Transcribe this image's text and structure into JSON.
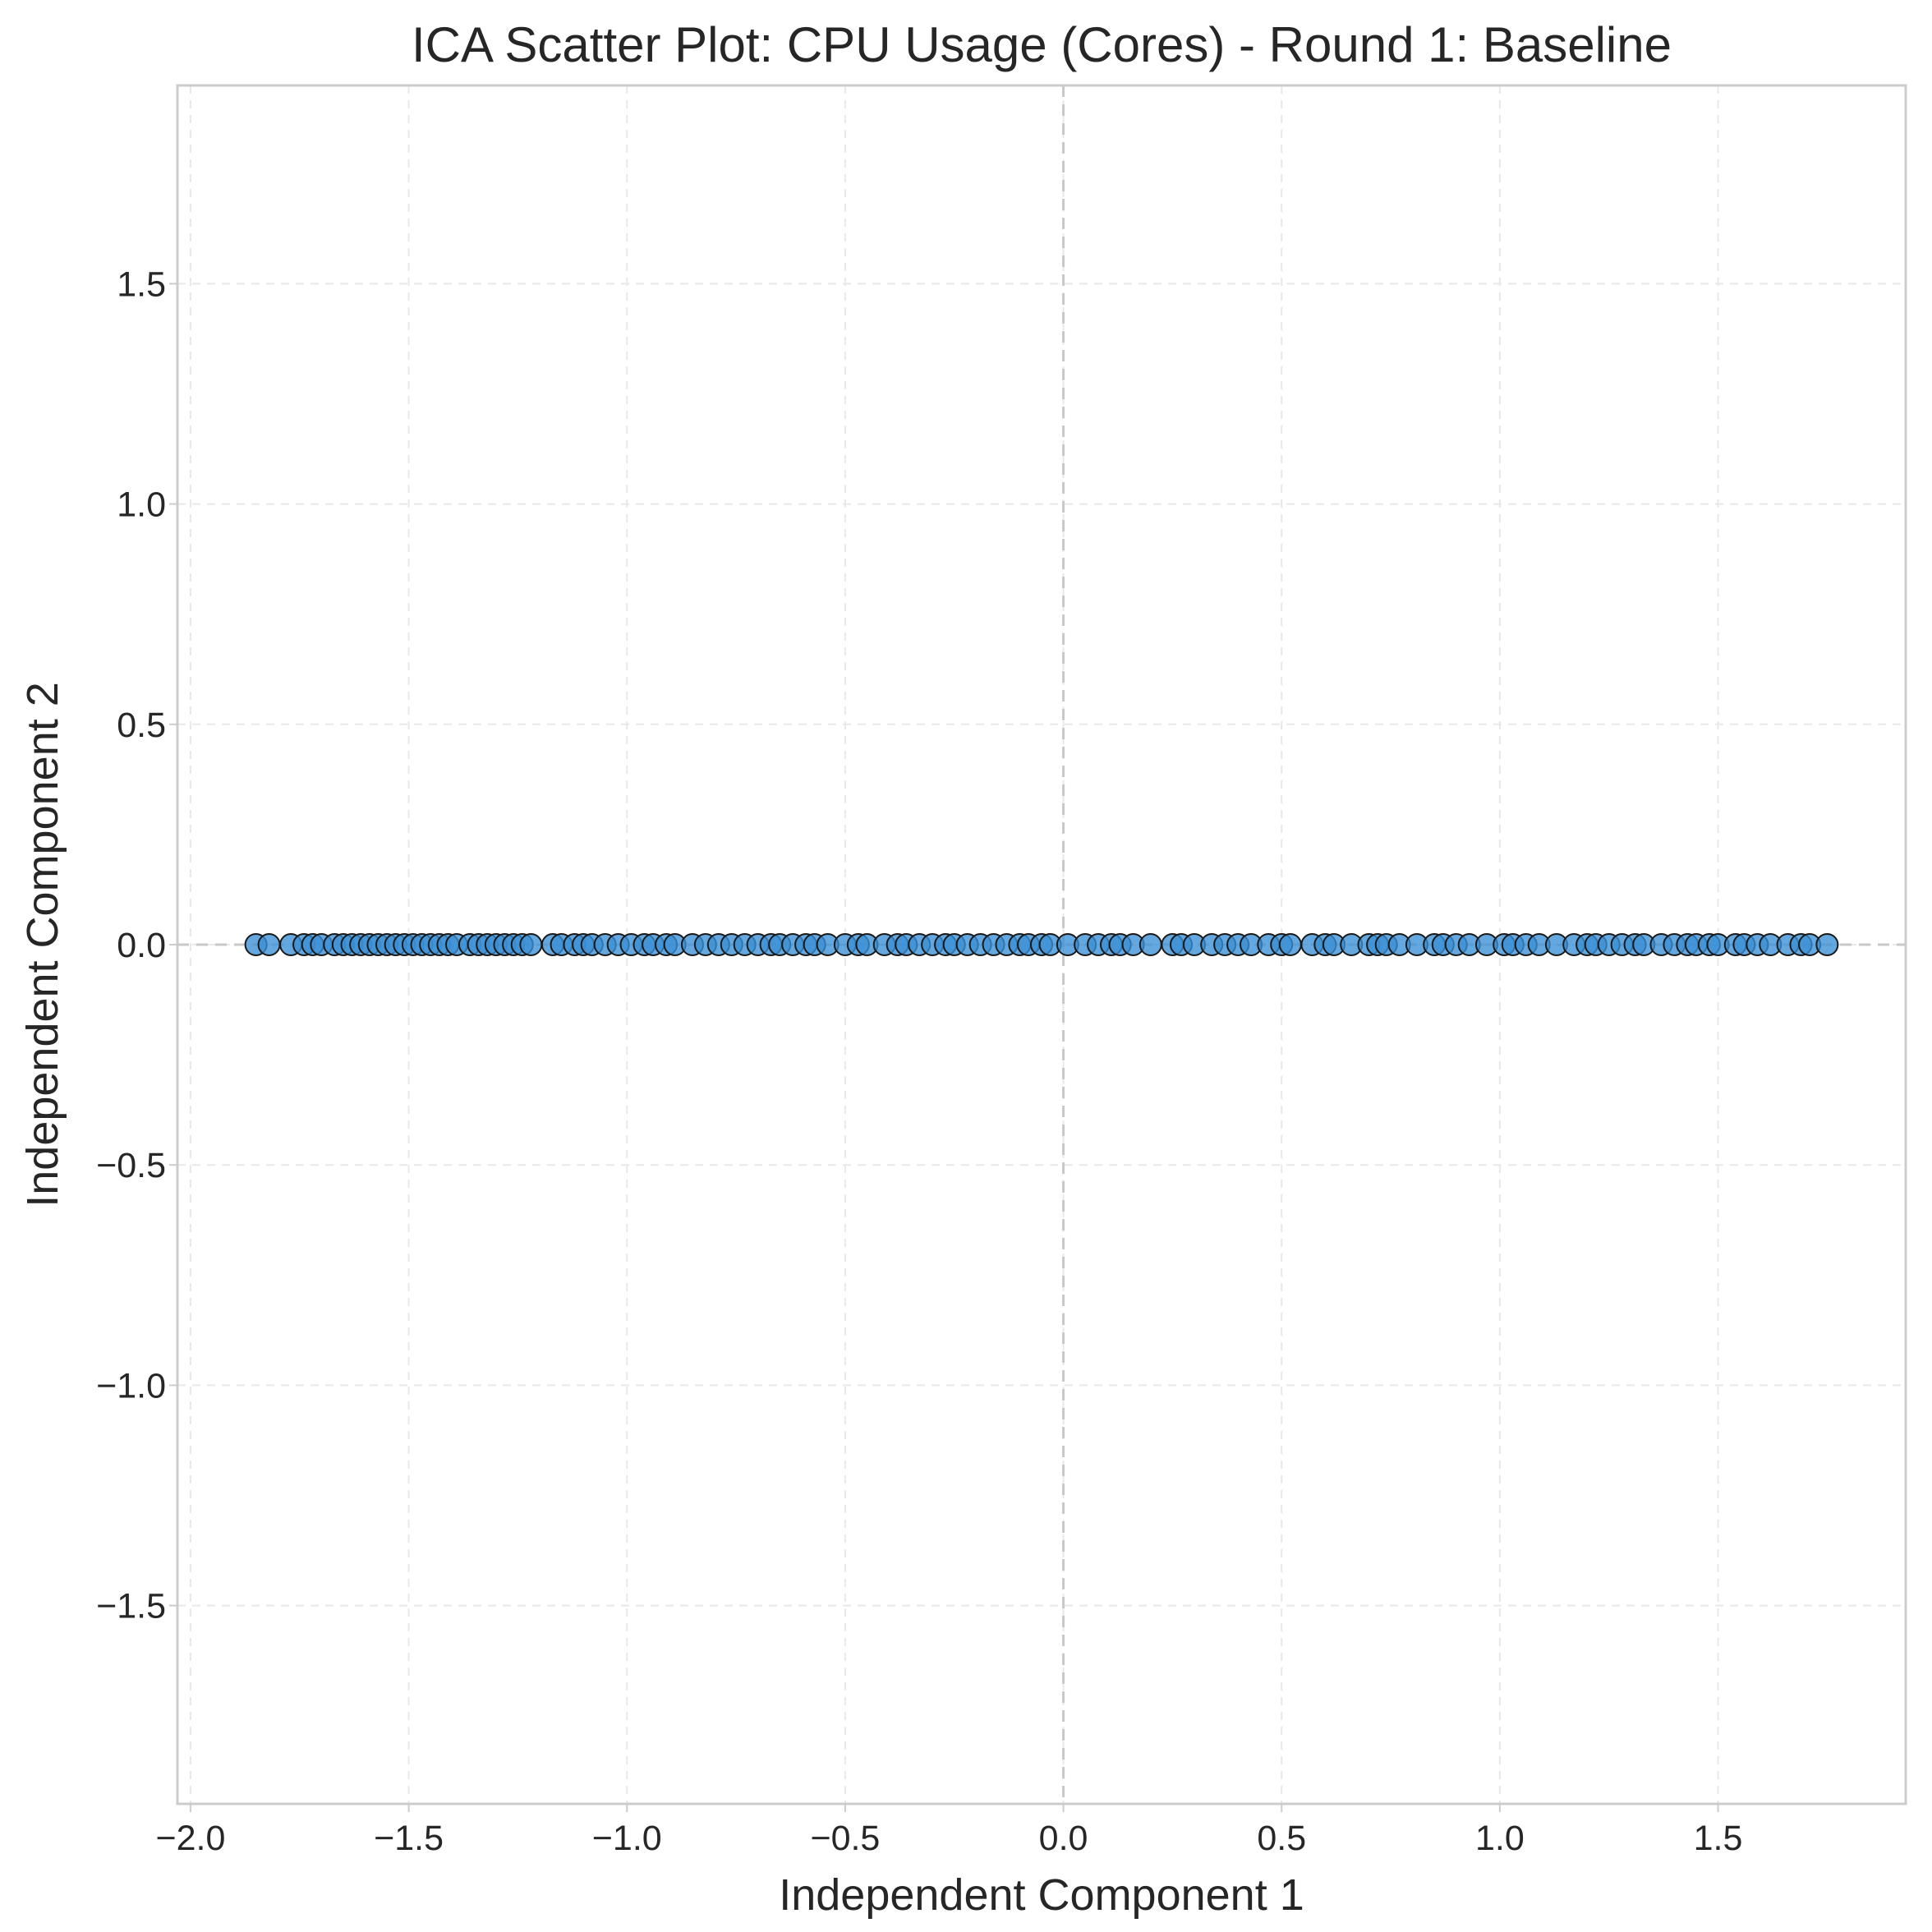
{
  "chart_data": {
    "type": "scatter",
    "title": "ICA Scatter Plot: CPU Usage (Cores) - Round 1: Baseline",
    "xlabel": "Independent Component 1",
    "ylabel": "Independent Component 2",
    "xlim": [
      -2.03,
      1.93
    ],
    "ylim": [
      -1.95,
      1.95
    ],
    "xticks": [
      -2.0,
      -1.5,
      -1.0,
      -0.5,
      0.0,
      0.5,
      1.0,
      1.5
    ],
    "xtick_labels": [
      "−2.0",
      "−1.5",
      "−1.0",
      "−0.5",
      "0.0",
      "0.5",
      "1.0",
      "1.5"
    ],
    "yticks": [
      1.5,
      1.0,
      0.5,
      0.0,
      -0.5,
      -1.0,
      -1.5
    ],
    "ytick_labels": [
      "1.5",
      "1.0",
      "0.5",
      "0.0",
      "−0.5",
      "−1.0",
      "−1.5"
    ],
    "grid": true,
    "zero_lines": true,
    "marker_color": "#3a8fd6",
    "marker_edge_color": "#1a1a1a",
    "series": [
      {
        "x": [
          -1.85,
          -1.82,
          -1.77,
          -1.74,
          -1.72,
          -1.7,
          -1.67,
          -1.65,
          -1.63,
          -1.61,
          -1.59,
          -1.57,
          -1.55,
          -1.53,
          -1.51,
          -1.49,
          -1.47,
          -1.45,
          -1.43,
          -1.41,
          -1.39,
          -1.36,
          -1.34,
          -1.32,
          -1.3,
          -1.28,
          -1.26,
          -1.24,
          -1.22,
          -1.17,
          -1.15,
          -1.12,
          -1.1,
          -1.08,
          -1.05,
          -1.02,
          -0.99,
          -0.96,
          -0.94,
          -0.91,
          -0.89,
          -0.85,
          -0.82,
          -0.79,
          -0.76,
          -0.73,
          -0.7,
          -0.67,
          -0.65,
          -0.62,
          -0.59,
          -0.57,
          -0.54,
          -0.5,
          -0.47,
          -0.45,
          -0.41,
          -0.38,
          -0.36,
          -0.33,
          -0.3,
          -0.27,
          -0.25,
          -0.22,
          -0.19,
          -0.16,
          -0.13,
          -0.1,
          -0.08,
          -0.05,
          -0.03,
          0.01,
          0.05,
          0.08,
          0.11,
          0.13,
          0.16,
          0.2,
          0.25,
          0.27,
          0.3,
          0.34,
          0.37,
          0.4,
          0.43,
          0.47,
          0.5,
          0.52,
          0.57,
          0.6,
          0.62,
          0.66,
          0.7,
          0.72,
          0.74,
          0.77,
          0.81,
          0.85,
          0.87,
          0.9,
          0.93,
          0.97,
          1.01,
          1.03,
          1.06,
          1.09,
          1.13,
          1.17,
          1.2,
          1.22,
          1.25,
          1.28,
          1.31,
          1.33,
          1.37,
          1.4,
          1.43,
          1.45,
          1.48,
          1.5,
          1.54,
          1.56,
          1.59,
          1.62,
          1.66,
          1.69,
          1.71,
          1.75
        ],
        "y": [
          0,
          0,
          0,
          0,
          0,
          0,
          0,
          0,
          0,
          0,
          0,
          0,
          0,
          0,
          0,
          0,
          0,
          0,
          0,
          0,
          0,
          0,
          0,
          0,
          0,
          0,
          0,
          0,
          0,
          0,
          0,
          0,
          0,
          0,
          0,
          0,
          0,
          0,
          0,
          0,
          0,
          0,
          0,
          0,
          0,
          0,
          0,
          0,
          0,
          0,
          0,
          0,
          0,
          0,
          0,
          0,
          0,
          0,
          0,
          0,
          0,
          0,
          0,
          0,
          0,
          0,
          0,
          0,
          0,
          0,
          0,
          0,
          0,
          0,
          0,
          0,
          0,
          0,
          0,
          0,
          0,
          0,
          0,
          0,
          0,
          0,
          0,
          0,
          0,
          0,
          0,
          0,
          0,
          0,
          0,
          0,
          0,
          0,
          0,
          0,
          0,
          0,
          0,
          0,
          0,
          0,
          0,
          0,
          0,
          0,
          0,
          0,
          0,
          0,
          0,
          0,
          0,
          0,
          0,
          0,
          0,
          0,
          0,
          0,
          0,
          0,
          0,
          0
        ]
      }
    ]
  }
}
